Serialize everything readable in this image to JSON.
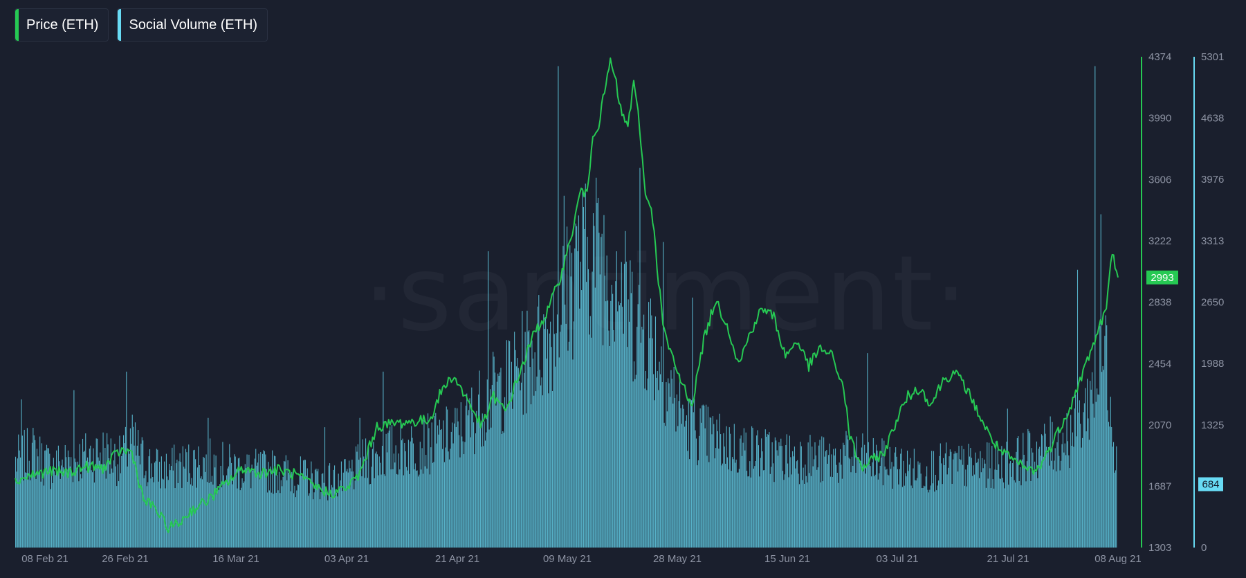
{
  "legend": [
    {
      "label": "Price (ETH)",
      "color": "#26c953"
    },
    {
      "label": "Social Volume (ETH)",
      "color": "#68dbf4"
    }
  ],
  "watermark": "·santiment·",
  "chart_data": {
    "type": "bar+line",
    "x_tick_labels": [
      "08 Feb 21",
      "26 Feb 21",
      "16 Mar 21",
      "03 Apr 21",
      "21 Apr 21",
      "09 May 21",
      "28 May 21",
      "15 Jun 21",
      "03 Jul 21",
      "21 Jul 21",
      "08 Aug 21"
    ],
    "price_axis": {
      "ticks": [
        1303,
        1687,
        2070,
        2454,
        2838,
        3222,
        3606,
        3990,
        4374
      ],
      "ylim": [
        1303,
        4374
      ],
      "color": "#26c953",
      "current": 2993
    },
    "volume_axis": {
      "ticks": [
        0,
        663,
        1325,
        1988,
        2650,
        3313,
        3976,
        4638,
        5301
      ],
      "tick_labels": [
        "0",
        "",
        "1325",
        "1988",
        "2650",
        "3313",
        "3976",
        "4638",
        "5301"
      ],
      "ylim": [
        0,
        5301
      ],
      "color": "#68dbf4",
      "current": 684
    },
    "series": [
      {
        "name": "Price (ETH)",
        "type": "line",
        "color": "#26c953",
        "points": [
          [
            "2021-02-01",
            1720
          ],
          [
            "2021-02-04",
            1760
          ],
          [
            "2021-02-07",
            1780
          ],
          [
            "2021-02-10",
            1770
          ],
          [
            "2021-02-13",
            1810
          ],
          [
            "2021-02-16",
            1800
          ],
          [
            "2021-02-19",
            1910
          ],
          [
            "2021-02-21",
            1900
          ],
          [
            "2021-02-23",
            1600
          ],
          [
            "2021-02-25",
            1550
          ],
          [
            "2021-02-27",
            1430
          ],
          [
            "2021-03-01",
            1450
          ],
          [
            "2021-03-03",
            1530
          ],
          [
            "2021-03-06",
            1600
          ],
          [
            "2021-03-09",
            1700
          ],
          [
            "2021-03-12",
            1800
          ],
          [
            "2021-03-15",
            1770
          ],
          [
            "2021-03-18",
            1790
          ],
          [
            "2021-03-21",
            1760
          ],
          [
            "2021-03-24",
            1690
          ],
          [
            "2021-03-27",
            1640
          ],
          [
            "2021-03-30",
            1680
          ],
          [
            "2021-04-01",
            1760
          ],
          [
            "2021-04-04",
            2060
          ],
          [
            "2021-04-07",
            2080
          ],
          [
            "2021-04-10",
            2090
          ],
          [
            "2021-04-13",
            2100
          ],
          [
            "2021-04-15",
            2280
          ],
          [
            "2021-04-17",
            2380
          ],
          [
            "2021-04-19",
            2260
          ],
          [
            "2021-04-22",
            2060
          ],
          [
            "2021-04-24",
            2250
          ],
          [
            "2021-04-26",
            2150
          ],
          [
            "2021-04-29",
            2450
          ],
          [
            "2021-05-01",
            2650
          ],
          [
            "2021-05-03",
            2760
          ],
          [
            "2021-05-05",
            2950
          ],
          [
            "2021-05-07",
            3200
          ],
          [
            "2021-05-09",
            3550
          ],
          [
            "2021-05-10",
            3500
          ],
          [
            "2021-05-11",
            3900
          ],
          [
            "2021-05-12",
            3950
          ],
          [
            "2021-05-13",
            4150
          ],
          [
            "2021-05-14",
            4350
          ],
          [
            "2021-05-15",
            4200
          ],
          [
            "2021-05-16",
            4000
          ],
          [
            "2021-05-17",
            3950
          ],
          [
            "2021-05-18",
            4200
          ],
          [
            "2021-05-19",
            3950
          ],
          [
            "2021-05-20",
            3500
          ],
          [
            "2021-05-21",
            3450
          ],
          [
            "2021-05-23",
            2700
          ],
          [
            "2021-05-24",
            2550
          ],
          [
            "2021-05-26",
            2350
          ],
          [
            "2021-05-28",
            2200
          ],
          [
            "2021-05-30",
            2600
          ],
          [
            "2021-06-01",
            2850
          ],
          [
            "2021-06-03",
            2700
          ],
          [
            "2021-06-05",
            2450
          ],
          [
            "2021-06-07",
            2650
          ],
          [
            "2021-06-09",
            2800
          ],
          [
            "2021-06-11",
            2750
          ],
          [
            "2021-06-13",
            2500
          ],
          [
            "2021-06-15",
            2600
          ],
          [
            "2021-06-17",
            2440
          ],
          [
            "2021-06-19",
            2550
          ],
          [
            "2021-06-21",
            2500
          ],
          [
            "2021-06-23",
            2300
          ],
          [
            "2021-06-24",
            2000
          ],
          [
            "2021-06-26",
            1800
          ],
          [
            "2021-06-28",
            1850
          ],
          [
            "2021-06-30",
            1900
          ],
          [
            "2021-07-02",
            2100
          ],
          [
            "2021-07-04",
            2250
          ],
          [
            "2021-07-06",
            2300
          ],
          [
            "2021-07-08",
            2200
          ],
          [
            "2021-07-10",
            2350
          ],
          [
            "2021-07-12",
            2400
          ],
          [
            "2021-07-14",
            2300
          ],
          [
            "2021-07-16",
            2150
          ],
          [
            "2021-07-18",
            2000
          ],
          [
            "2021-07-20",
            1900
          ],
          [
            "2021-07-22",
            1850
          ],
          [
            "2021-07-24",
            1800
          ],
          [
            "2021-07-26",
            1780
          ],
          [
            "2021-07-28",
            1900
          ],
          [
            "2021-07-30",
            2050
          ],
          [
            "2021-08-01",
            2200
          ],
          [
            "2021-08-03",
            2400
          ],
          [
            "2021-08-05",
            2600
          ],
          [
            "2021-08-07",
            2800
          ],
          [
            "2021-08-08",
            3150
          ],
          [
            "2021-08-09",
            2993
          ]
        ]
      },
      {
        "name": "Social Volume (ETH)",
        "type": "bar",
        "color": "#68dbf4",
        "points": [
          [
            "2021-02-01",
            900
          ],
          [
            "2021-02-04",
            1000
          ],
          [
            "2021-02-07",
            850
          ],
          [
            "2021-02-10",
            900
          ],
          [
            "2021-02-13",
            950
          ],
          [
            "2021-02-16",
            1000
          ],
          [
            "2021-02-19",
            900
          ],
          [
            "2021-02-21",
            1100
          ],
          [
            "2021-02-23",
            900
          ],
          [
            "2021-02-26",
            800
          ],
          [
            "2021-03-01",
            850
          ],
          [
            "2021-03-05",
            900
          ],
          [
            "2021-03-09",
            850
          ],
          [
            "2021-03-13",
            800
          ],
          [
            "2021-03-17",
            800
          ],
          [
            "2021-03-21",
            750
          ],
          [
            "2021-03-25",
            700
          ],
          [
            "2021-03-29",
            700
          ],
          [
            "2021-04-02",
            900
          ],
          [
            "2021-04-06",
            1000
          ],
          [
            "2021-04-10",
            1050
          ],
          [
            "2021-04-14",
            1100
          ],
          [
            "2021-04-18",
            1200
          ],
          [
            "2021-04-22",
            1500
          ],
          [
            "2021-04-26",
            1700
          ],
          [
            "2021-04-30",
            2000
          ],
          [
            "2021-05-03",
            2200
          ],
          [
            "2021-05-06",
            2600
          ],
          [
            "2021-05-09",
            3000
          ],
          [
            "2021-05-12",
            3100
          ],
          [
            "2021-05-15",
            2800
          ],
          [
            "2021-05-18",
            2400
          ],
          [
            "2021-05-21",
            2200
          ],
          [
            "2021-05-24",
            1700
          ],
          [
            "2021-05-27",
            1300
          ],
          [
            "2021-05-31",
            1150
          ],
          [
            "2021-06-04",
            1050
          ],
          [
            "2021-06-08",
            1000
          ],
          [
            "2021-06-12",
            950
          ],
          [
            "2021-06-16",
            950
          ],
          [
            "2021-06-20",
            900
          ],
          [
            "2021-06-24",
            950
          ],
          [
            "2021-06-28",
            900
          ],
          [
            "2021-07-02",
            850
          ],
          [
            "2021-07-06",
            800
          ],
          [
            "2021-07-10",
            850
          ],
          [
            "2021-07-14",
            850
          ],
          [
            "2021-07-18",
            850
          ],
          [
            "2021-07-22",
            900
          ],
          [
            "2021-07-26",
            1000
          ],
          [
            "2021-07-30",
            1100
          ],
          [
            "2021-08-02",
            1250
          ],
          [
            "2021-08-05",
            1700
          ],
          [
            "2021-08-07",
            2000
          ],
          [
            "2021-08-09",
            684
          ]
        ],
        "spikes": [
          [
            "2021-02-02",
            1600
          ],
          [
            "2021-02-11",
            1700
          ],
          [
            "2021-02-20",
            1900
          ],
          [
            "2021-03-06",
            1400
          ],
          [
            "2021-03-26",
            1300
          ],
          [
            "2021-04-01",
            1400
          ],
          [
            "2021-04-05",
            1900
          ],
          [
            "2021-04-23",
            3200
          ],
          [
            "2021-05-05",
            5200
          ],
          [
            "2021-05-06",
            3800
          ],
          [
            "2021-05-08",
            3500
          ],
          [
            "2021-05-12",
            3400
          ],
          [
            "2021-05-15",
            3200
          ],
          [
            "2021-05-19",
            4100
          ],
          [
            "2021-05-23",
            3300
          ],
          [
            "2021-05-28",
            2700
          ],
          [
            "2021-06-27",
            2100
          ],
          [
            "2021-07-21",
            1500
          ],
          [
            "2021-08-02",
            3000
          ],
          [
            "2021-08-05",
            5200
          ],
          [
            "2021-08-06",
            3600
          ],
          [
            "2021-08-07",
            2400
          ]
        ]
      }
    ],
    "date_range": [
      "2021-02-01",
      "2021-08-09"
    ]
  }
}
